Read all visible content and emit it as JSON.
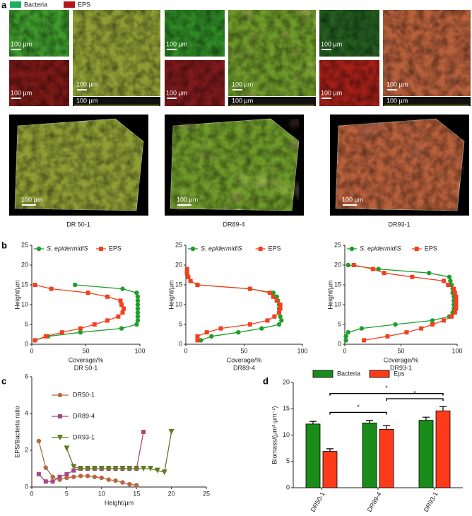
{
  "panel_labels": [
    "a",
    "b",
    "c",
    "d"
  ],
  "panel_a": {
    "legend": [
      {
        "name": "Bacteria",
        "color": "#1fae5f"
      },
      {
        "name": "EPS",
        "color": "#b3191c"
      }
    ],
    "scale_label": "100 µm",
    "captions": [
      "DR 50-1",
      "DR89-4",
      "DR93-1"
    ]
  },
  "chart_data": [
    {
      "type": "line",
      "xlabel": "Coverage/%",
      "ylabel": "Height/µm",
      "caption": "DR 50-1",
      "xlim": [
        0,
        100
      ],
      "ylim": [
        0,
        25
      ],
      "xticks": [
        0,
        50,
        100
      ],
      "yticks": [
        0,
        5,
        10,
        15,
        20,
        25
      ],
      "legend": "top",
      "series": [
        {
          "name": "S. epidermidiS",
          "font_style": "italic",
          "color": "#1e9e2a",
          "marker": "circle",
          "x": [
            3,
            15,
            45,
            83,
            97,
            98,
            98,
            98,
            98,
            98,
            98,
            98,
            97,
            84,
            40
          ],
          "values": [
            1,
            2,
            3,
            4,
            5,
            6,
            7,
            8,
            9,
            10,
            11,
            12,
            13,
            14,
            15
          ]
        },
        {
          "name": "EPS",
          "color": "#f2401e",
          "marker": "square",
          "x": [
            3,
            13,
            28,
            45,
            58,
            70,
            80,
            84,
            85,
            83,
            82,
            70,
            52,
            18,
            3
          ],
          "values": [
            1,
            2,
            3,
            4,
            5,
            6,
            7,
            8,
            9,
            10,
            11,
            12,
            13,
            14,
            15
          ]
        }
      ]
    },
    {
      "type": "line",
      "xlabel": "Coverage/%",
      "ylabel": "Height/µm",
      "caption": "DR89-4",
      "xlim": [
        0,
        100
      ],
      "ylim": [
        0,
        25
      ],
      "xticks": [
        0,
        50,
        100
      ],
      "yticks": [
        0,
        5,
        10,
        15,
        20,
        25
      ],
      "legend": "top",
      "series": [
        {
          "name": "S. epidermidiS",
          "font_style": "italic",
          "color": "#1e9e2a",
          "marker": "circle",
          "x": [
            13,
            22,
            45,
            65,
            80,
            82,
            81,
            80,
            80,
            80,
            79,
            78,
            75,
            55,
            10,
            4,
            2,
            1
          ],
          "values": [
            1,
            2,
            3,
            4,
            5,
            6,
            7,
            8,
            9,
            10,
            11,
            12,
            13,
            14,
            15,
            16,
            17,
            18
          ]
        },
        {
          "name": "EPS",
          "color": "#f2401e",
          "marker": "square",
          "x": [
            10,
            10,
            18,
            30,
            55,
            70,
            76,
            80,
            81,
            81,
            78,
            75,
            72,
            55,
            10,
            4,
            2,
            1,
            1
          ],
          "values": [
            1,
            2,
            3,
            4,
            5,
            6,
            7,
            8,
            9,
            10,
            11,
            12,
            13,
            14,
            15,
            16,
            17,
            18,
            19
          ]
        }
      ]
    },
    {
      "type": "line",
      "xlabel": "Coverage/%",
      "ylabel": "Height/µm",
      "caption": "DR93-1",
      "xlim": [
        0,
        100
      ],
      "ylim": [
        0,
        25
      ],
      "xticks": [
        0,
        50,
        100
      ],
      "yticks": [
        0,
        5,
        10,
        15,
        20,
        25
      ],
      "legend": "top",
      "series": [
        {
          "name": "S. epidermidiS",
          "font_style": "italic",
          "color": "#1e9e2a",
          "marker": "circle",
          "x": [
            1,
            1,
            3,
            15,
            45,
            78,
            93,
            96,
            97,
            97,
            97,
            97,
            96,
            96,
            95,
            94,
            93,
            75,
            30,
            3
          ],
          "values": [
            1,
            2,
            3,
            4,
            5,
            6,
            7,
            8,
            9,
            10,
            11,
            12,
            13,
            14,
            15,
            16,
            17,
            18,
            19,
            20
          ]
        },
        {
          "name": "EPS",
          "color": "#f2401e",
          "marker": "square",
          "x": [
            17,
            38,
            55,
            68,
            78,
            88,
            95,
            98,
            99,
            99,
            99,
            99,
            98,
            97,
            92,
            88,
            60,
            35,
            25,
            8
          ],
          "values": [
            1,
            2,
            3,
            4,
            5,
            6,
            7,
            8,
            9,
            10,
            11,
            12,
            13,
            14,
            15,
            16,
            17,
            18,
            19,
            20
          ]
        }
      ]
    },
    {
      "type": "line",
      "xlabel": "Height/µm",
      "ylabel": "EPS/Bacteria ratio",
      "xlim": [
        0,
        25
      ],
      "ylim": [
        0,
        6
      ],
      "xticks": [
        0,
        5,
        10,
        15,
        20,
        25
      ],
      "yticks": [
        0,
        2,
        4,
        6
      ],
      "legend": "upper-left",
      "series": [
        {
          "name": "DR50-1",
          "color": "#b8683f",
          "marker": "circle",
          "x": [
            1,
            2,
            3,
            4,
            5,
            6,
            7,
            8,
            9,
            10,
            11,
            12,
            13,
            14,
            15
          ],
          "values": [
            2.5,
            1.05,
            0.55,
            0.4,
            0.5,
            0.55,
            0.6,
            0.6,
            0.55,
            0.5,
            0.4,
            0.35,
            0.25,
            0.15,
            0.1
          ]
        },
        {
          "name": "DR89-4",
          "color": "#a8487c",
          "marker": "square",
          "x": [
            1,
            2,
            3,
            4,
            5,
            6,
            7,
            8,
            9,
            10,
            11,
            12,
            13,
            14,
            15,
            16
          ],
          "values": [
            0.7,
            0.3,
            0.3,
            0.55,
            0.7,
            0.9,
            1.0,
            1.0,
            1.0,
            1.0,
            1.0,
            1.0,
            1.0,
            1.0,
            1.0,
            3.0
          ]
        },
        {
          "name": "DR93-1",
          "color": "#5e7c20",
          "marker": "triangle-down",
          "x": [
            5,
            6,
            7,
            8,
            9,
            10,
            11,
            12,
            13,
            14,
            15,
            16,
            17,
            18,
            19,
            20
          ],
          "values": [
            2.1,
            1.1,
            1.0,
            1.0,
            1.0,
            1.0,
            1.0,
            1.0,
            1.0,
            1.0,
            1.0,
            1.0,
            1.0,
            0.9,
            0.8,
            3.0
          ]
        }
      ]
    },
    {
      "type": "bar",
      "ylabel": "Biomass/(μm³·μm⁻²)",
      "categories": [
        "DR50-1",
        "DR89-4",
        "DR93-1"
      ],
      "ylim": [
        0,
        20
      ],
      "yticks": [
        0,
        5,
        10,
        15,
        20
      ],
      "legend": "top",
      "series": [
        {
          "name": "Bacteria",
          "color": "#1a8c1a",
          "values": [
            12.1,
            12.3,
            12.8
          ],
          "errors": [
            0.5,
            0.5,
            0.6
          ]
        },
        {
          "name": "Eps",
          "color": "#ff3a1a",
          "values": [
            6.9,
            11.1,
            14.6
          ],
          "errors": [
            0.5,
            0.7,
            0.8
          ]
        }
      ],
      "annotations": [
        {
          "from": "DR50-1",
          "to": "DR89-4",
          "label": "*"
        },
        {
          "from": "DR89-4",
          "to": "DR93-1",
          "label": "*"
        },
        {
          "from": "DR50-1",
          "to": "DR93-1",
          "label": "*"
        }
      ]
    }
  ]
}
